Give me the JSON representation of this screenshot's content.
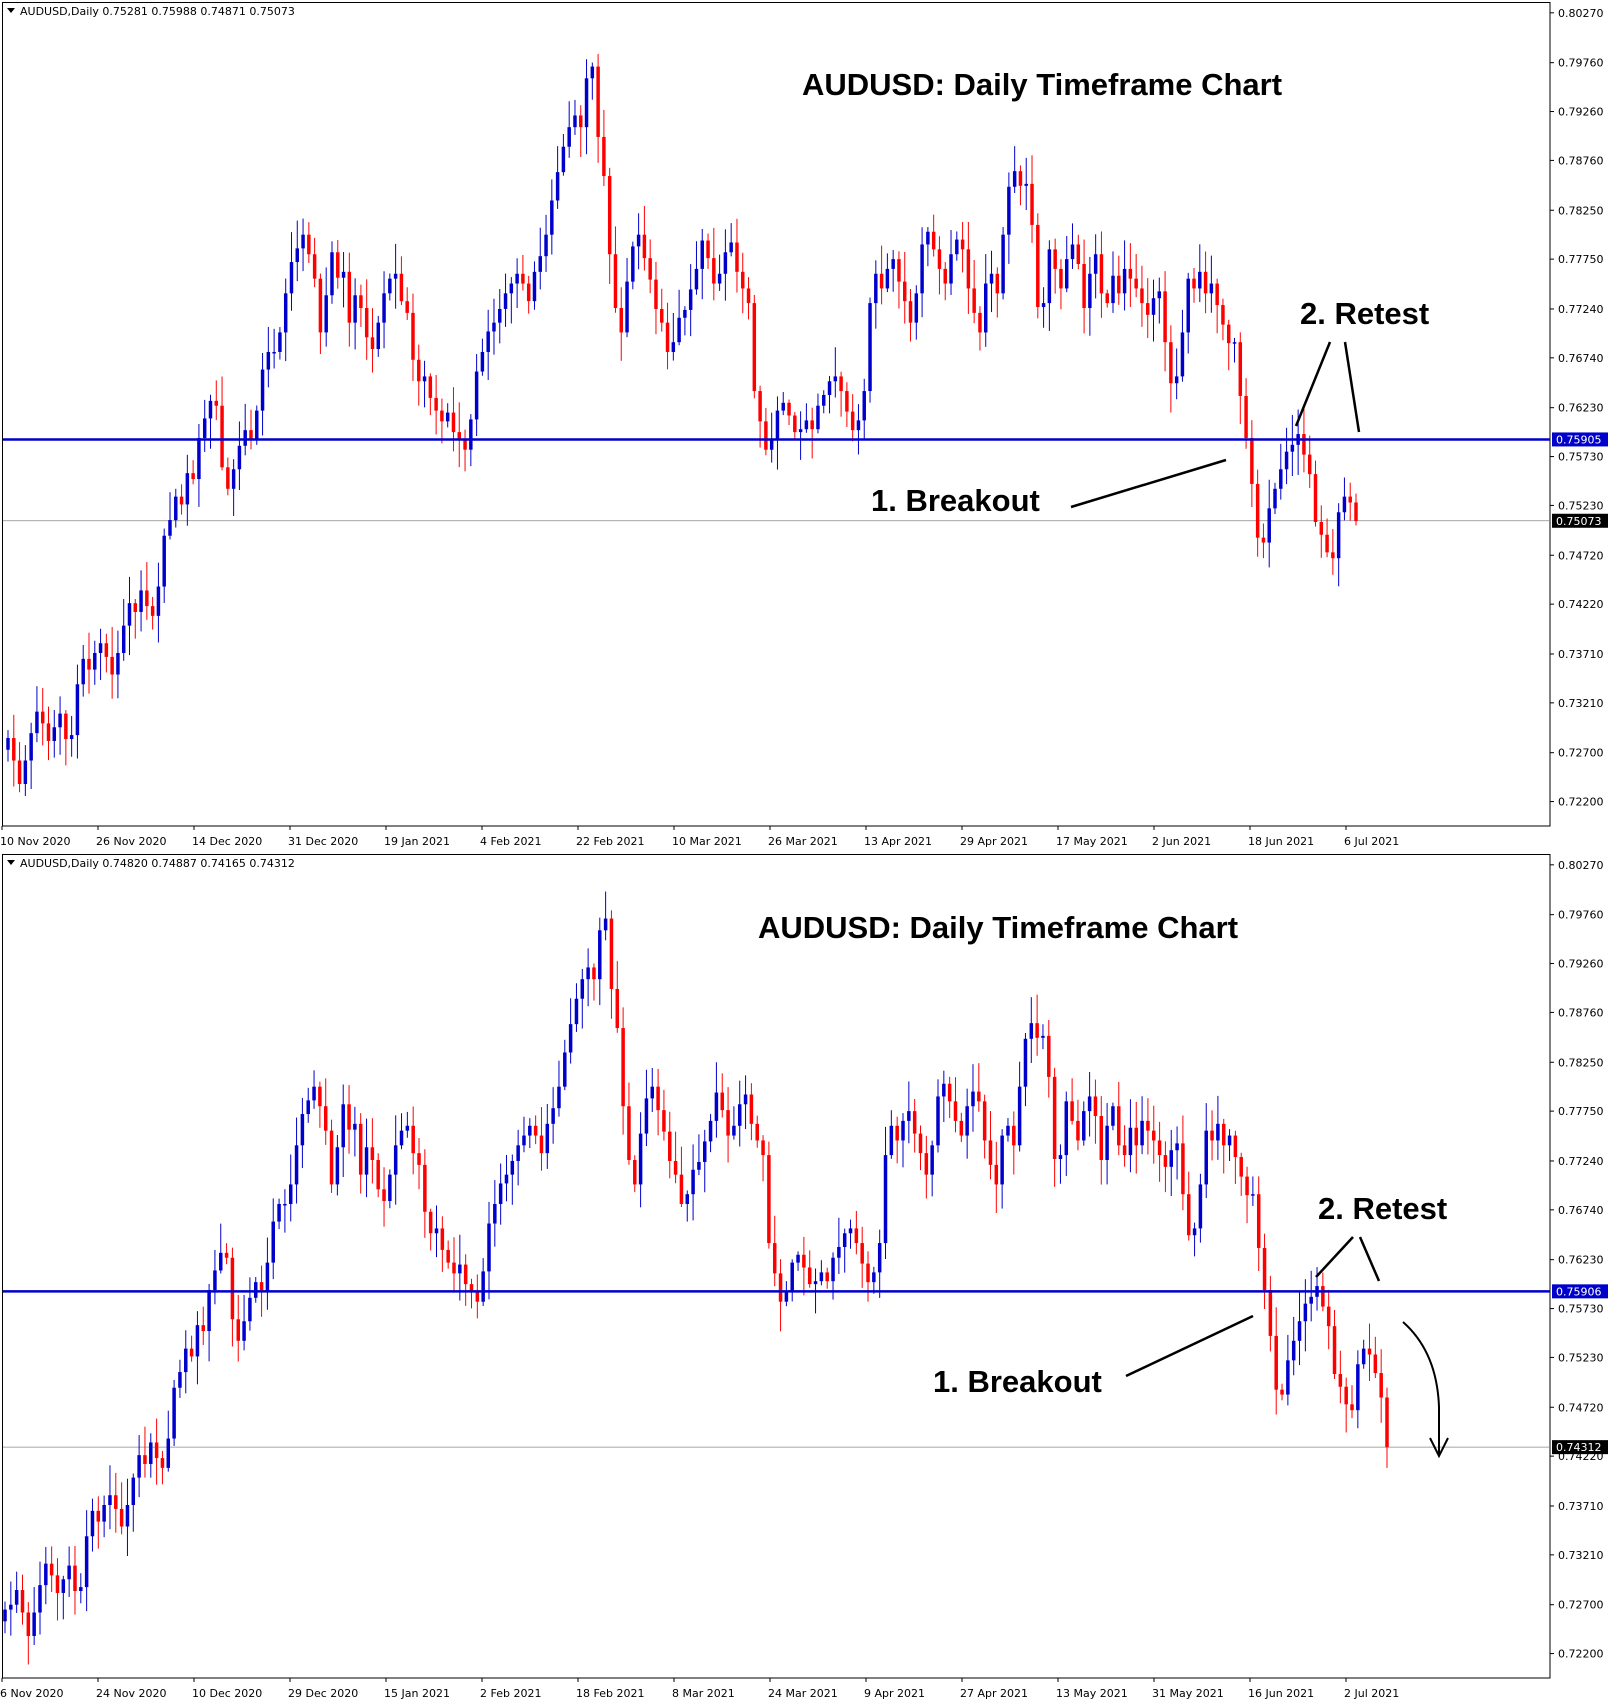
{
  "colors": {
    "bull": "#0000cc",
    "bear": "#ff0000",
    "level_line": "#0000cc",
    "grid": "#888888"
  },
  "chart_data": [
    {
      "type": "candlestick",
      "header": "AUDUSD,Daily  0.75281 0.75988 0.74871 0.75073",
      "title": "AUDUSD: Daily Timeframe Chart",
      "y_ticks": [
        "0.80270",
        "0.79760",
        "0.79260",
        "0.78760",
        "0.78250",
        "0.77750",
        "0.77240",
        "0.76740",
        "0.76230",
        "0.75730",
        "0.75230",
        "0.74720",
        "0.74220",
        "0.73710",
        "0.73210",
        "0.72700",
        "0.72200"
      ],
      "ylim": [
        0.7195,
        0.8035
      ],
      "x_labels": [
        "10 Nov 2020",
        "26 Nov 2020",
        "14 Dec 2020",
        "31 Dec 2020",
        "19 Jan 2021",
        "4 Feb 2021",
        "22 Feb 2021",
        "10 Mar 2021",
        "26 Mar 2021",
        "13 Apr 2021",
        "29 Apr 2021",
        "17 May 2021",
        "2 Jun 2021",
        "18 Jun 2021",
        "6 Jul 2021"
      ],
      "level": {
        "value": 0.75905,
        "label": "0.75905"
      },
      "current": {
        "value": 0.75073,
        "label": "0.75073"
      },
      "annotations": {
        "breakout": "1. Breakout",
        "retest": "2. Retest"
      },
      "closes": [
        0.7285,
        0.7262,
        0.7238,
        0.7262,
        0.729,
        0.7312,
        0.73,
        0.7282,
        0.7296,
        0.731,
        0.7284,
        0.7288,
        0.734,
        0.7366,
        0.7355,
        0.7372,
        0.7382,
        0.7368,
        0.735,
        0.7372,
        0.74,
        0.7423,
        0.7414,
        0.7436,
        0.742,
        0.741,
        0.744,
        0.7492,
        0.7508,
        0.7532,
        0.7524,
        0.7556,
        0.755,
        0.7592,
        0.7612,
        0.763,
        0.7625,
        0.7562,
        0.754,
        0.756,
        0.7584,
        0.76,
        0.759,
        0.762,
        0.7662,
        0.768,
        0.768,
        0.77,
        0.774,
        0.7772,
        0.7786,
        0.78,
        0.778,
        0.7755,
        0.77,
        0.7738,
        0.7782,
        0.7756,
        0.7762,
        0.771,
        0.7738,
        0.7725,
        0.7695,
        0.7683,
        0.771,
        0.774,
        0.7755,
        0.776,
        0.7732,
        0.772,
        0.7672,
        0.765,
        0.7655,
        0.7633,
        0.762,
        0.7609,
        0.7618,
        0.7598,
        0.759,
        0.758,
        0.7611,
        0.766,
        0.768,
        0.7701,
        0.771,
        0.7724,
        0.774,
        0.775,
        0.776,
        0.775,
        0.7732,
        0.7762,
        0.7778,
        0.78,
        0.7835,
        0.7864,
        0.789,
        0.791,
        0.7922,
        0.791,
        0.796,
        0.7972,
        0.79,
        0.786,
        0.778,
        0.7725,
        0.77,
        0.7752,
        0.7788,
        0.78,
        0.7776,
        0.7754,
        0.7724,
        0.771,
        0.768,
        0.769,
        0.7715,
        0.7723,
        0.7744,
        0.7765,
        0.7794,
        0.7776,
        0.775,
        0.776,
        0.7782,
        0.7792,
        0.7762,
        0.7745,
        0.773,
        0.764,
        0.7609,
        0.758,
        0.759,
        0.762,
        0.7628,
        0.7615,
        0.7598,
        0.7601,
        0.761,
        0.7601,
        0.7625,
        0.7636,
        0.765,
        0.7655,
        0.764,
        0.7619,
        0.76,
        0.761,
        0.764,
        0.773,
        0.776,
        0.7745,
        0.7765,
        0.7775,
        0.7752,
        0.7732,
        0.771,
        0.774,
        0.779,
        0.7803,
        0.7785,
        0.7765,
        0.775,
        0.778,
        0.7795,
        0.7785,
        0.7745,
        0.772,
        0.77,
        0.775,
        0.776,
        0.774,
        0.78,
        0.7849,
        0.7865,
        0.785,
        0.7852,
        0.781,
        0.7726,
        0.773,
        0.7785,
        0.7765,
        0.7745,
        0.7775,
        0.779,
        0.777,
        0.7725,
        0.776,
        0.778,
        0.774,
        0.773,
        0.7758,
        0.774,
        0.7765,
        0.7755,
        0.7745,
        0.773,
        0.7718,
        0.7735,
        0.7742,
        0.769,
        0.7648,
        0.7655,
        0.77,
        0.7755,
        0.7745,
        0.7762,
        0.774,
        0.775,
        0.7728,
        0.7708,
        0.7689,
        0.769,
        0.7635,
        0.7592,
        0.7545,
        0.749,
        0.7485,
        0.752,
        0.754,
        0.756,
        0.7578,
        0.7585,
        0.7596,
        0.7575,
        0.7555,
        0.7506,
        0.7493,
        0.7475,
        0.7469,
        0.7516,
        0.7532,
        0.7526,
        0.7507
      ]
    },
    {
      "type": "candlestick",
      "header": "AUDUSD,Daily  0.74820 0.74887 0.74165 0.74312",
      "title": "AUDUSD: Daily Timeframe Chart",
      "y_ticks": [
        "0.80270",
        "0.79760",
        "0.79260",
        "0.78760",
        "0.78250",
        "0.77750",
        "0.77240",
        "0.76740",
        "0.76230",
        "0.75730",
        "0.75230",
        "0.74720",
        "0.74220",
        "0.73710",
        "0.73210",
        "0.72700",
        "0.72200"
      ],
      "ylim": [
        0.7195,
        0.8035
      ],
      "x_labels": [
        "6 Nov 2020",
        "24 Nov 2020",
        "10 Dec 2020",
        "29 Dec 2020",
        "15 Jan 2021",
        "2 Feb 2021",
        "18 Feb 2021",
        "8 Mar 2021",
        "24 Mar 2021",
        "9 Apr 2021",
        "27 Apr 2021",
        "13 May 2021",
        "31 May 2021",
        "16 Jun 2021",
        "2 Jul 2021"
      ],
      "level": {
        "value": 0.75906,
        "label": "0.75906"
      },
      "current": {
        "value": 0.74312,
        "label": "0.74312"
      },
      "annotations": {
        "breakout": "1. Breakout",
        "retest": "2. Retest"
      },
      "closes": [
        0.7265,
        0.727,
        0.7285,
        0.7262,
        0.7238,
        0.7262,
        0.729,
        0.7312,
        0.73,
        0.7282,
        0.7296,
        0.731,
        0.7284,
        0.7288,
        0.734,
        0.7366,
        0.7355,
        0.7372,
        0.7382,
        0.7368,
        0.735,
        0.7372,
        0.74,
        0.7423,
        0.7414,
        0.7436,
        0.742,
        0.741,
        0.744,
        0.7492,
        0.7508,
        0.7532,
        0.7524,
        0.7556,
        0.755,
        0.7592,
        0.7612,
        0.763,
        0.7625,
        0.7562,
        0.754,
        0.756,
        0.7584,
        0.76,
        0.759,
        0.762,
        0.7662,
        0.768,
        0.768,
        0.77,
        0.774,
        0.7772,
        0.7786,
        0.78,
        0.778,
        0.7755,
        0.77,
        0.7738,
        0.7782,
        0.7756,
        0.7762,
        0.771,
        0.7738,
        0.7725,
        0.7695,
        0.7683,
        0.771,
        0.774,
        0.7755,
        0.776,
        0.7732,
        0.772,
        0.7672,
        0.765,
        0.7655,
        0.7633,
        0.762,
        0.7609,
        0.7618,
        0.7598,
        0.759,
        0.758,
        0.7611,
        0.766,
        0.768,
        0.7701,
        0.771,
        0.7724,
        0.774,
        0.775,
        0.776,
        0.775,
        0.7732,
        0.7762,
        0.7778,
        0.78,
        0.7835,
        0.7864,
        0.789,
        0.791,
        0.7922,
        0.791,
        0.796,
        0.7972,
        0.79,
        0.786,
        0.778,
        0.7725,
        0.77,
        0.7752,
        0.7788,
        0.78,
        0.7776,
        0.7754,
        0.7724,
        0.771,
        0.768,
        0.769,
        0.7715,
        0.7723,
        0.7744,
        0.7765,
        0.7794,
        0.7776,
        0.775,
        0.776,
        0.7782,
        0.7792,
        0.7762,
        0.7745,
        0.773,
        0.764,
        0.7609,
        0.758,
        0.759,
        0.762,
        0.7628,
        0.7615,
        0.7598,
        0.7601,
        0.761,
        0.7601,
        0.7625,
        0.7636,
        0.765,
        0.7655,
        0.764,
        0.7619,
        0.76,
        0.761,
        0.764,
        0.773,
        0.776,
        0.7745,
        0.7765,
        0.7775,
        0.7752,
        0.7732,
        0.771,
        0.774,
        0.779,
        0.7803,
        0.7785,
        0.7765,
        0.775,
        0.778,
        0.7795,
        0.7785,
        0.7745,
        0.772,
        0.77,
        0.775,
        0.776,
        0.774,
        0.78,
        0.7849,
        0.7865,
        0.785,
        0.7852,
        0.781,
        0.7726,
        0.773,
        0.7785,
        0.7765,
        0.7745,
        0.7775,
        0.779,
        0.777,
        0.7725,
        0.776,
        0.778,
        0.774,
        0.773,
        0.7758,
        0.774,
        0.7765,
        0.7755,
        0.7745,
        0.773,
        0.7718,
        0.7735,
        0.7742,
        0.769,
        0.7648,
        0.7655,
        0.77,
        0.7755,
        0.7745,
        0.7762,
        0.774,
        0.775,
        0.7728,
        0.7708,
        0.7689,
        0.769,
        0.7635,
        0.7592,
        0.7545,
        0.749,
        0.7485,
        0.752,
        0.754,
        0.756,
        0.7578,
        0.7585,
        0.7596,
        0.7575,
        0.7555,
        0.7506,
        0.7493,
        0.7475,
        0.7469,
        0.7516,
        0.7532,
        0.7526,
        0.7507,
        0.7482,
        0.7431
      ]
    }
  ]
}
